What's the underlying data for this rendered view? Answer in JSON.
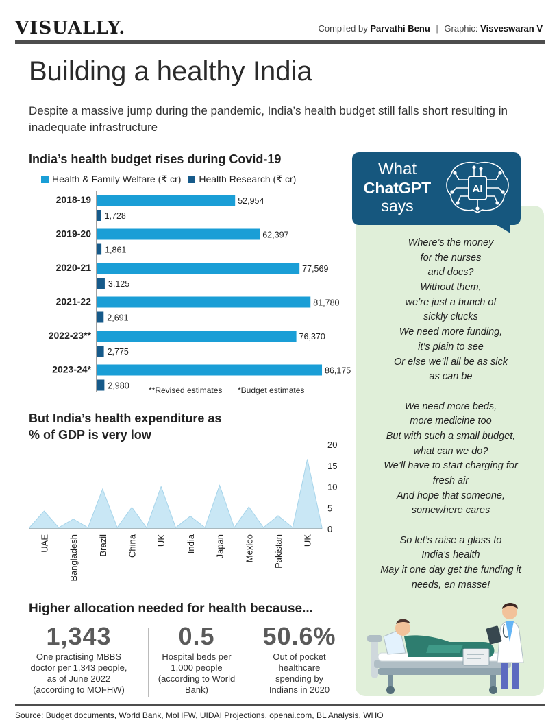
{
  "header": {
    "masthead": "VISUALLY.",
    "compiled_prefix": "Compiled by",
    "compiled_name": "Parvathi Benu",
    "separator": "|",
    "graphic_prefix": "Graphic:",
    "graphic_name": "Visveswaran V"
  },
  "title": "Building a healthy India",
  "subtitle": "Despite a massive jump during the pandemic, India’s health budget still falls short resulting in inadequate infrastructure",
  "colors": {
    "welfare": "#1a9ed6",
    "research": "#165a8a",
    "area": "#c9e7f5",
    "panel": "#e0efd9",
    "gpt_box": "#16577e"
  },
  "budget_section": {
    "heading": "India’s health budget rises during Covid-19"
  },
  "gdp_section": {
    "heading_line1": "But India’s health expenditure as",
    "heading_line2": "% of GDP is very low"
  },
  "chart_data": [
    {
      "type": "bar",
      "orientation": "horizontal",
      "title": "India’s health budget rises during Covid-19",
      "categories": [
        "2018-19",
        "2019-20",
        "2020-21",
        "2021-22",
        "2022-23**",
        "2023-24*"
      ],
      "series": [
        {
          "name": "Health & Family Welfare (₹ cr)",
          "values": [
            52954,
            62397,
            77569,
            81780,
            76370,
            86175
          ],
          "labels": [
            "52,954",
            "62,397",
            "77,569",
            "81,780",
            "76,370",
            "86,175"
          ]
        },
        {
          "name": "Health Research (₹ cr)",
          "values": [
            1728,
            1861,
            3125,
            2691,
            2775,
            2980
          ],
          "labels": [
            "1,728",
            "1,861",
            "3,125",
            "2,691",
            "2,775",
            "2,980"
          ]
        }
      ],
      "xlim": [
        0,
        110000
      ],
      "grid": false,
      "legend": "top",
      "notes": [
        "**Revised estimates",
        "*Budget estimates"
      ]
    },
    {
      "type": "area",
      "title": "But India’s health expenditure as % of GDP is very low",
      "categories": [
        "UAE",
        "Bangladesh",
        "Brazil",
        "China",
        "UK",
        "India",
        "Japan",
        "Mexico",
        "Pakistan",
        "UK"
      ],
      "x": [
        1,
        3,
        5,
        7,
        9,
        11,
        13,
        15,
        17,
        19
      ],
      "y": [
        4.2,
        2.3,
        9.4,
        5.1,
        10,
        3,
        10.3,
        5.2,
        3.1,
        16.5
      ],
      "baseline_between_peaks": 0.3,
      "ylim": [
        0,
        20
      ],
      "yticks": [
        "20",
        "15",
        "10",
        "5",
        "0"
      ],
      "grid": false
    }
  ],
  "reasons": {
    "heading": "Higher allocation needed for health because...",
    "stats": [
      {
        "value": "1,343",
        "lines": [
          "One practising MBBS",
          "doctor per 1,343 people,",
          "as of June 2022",
          "(according to MOFHW)"
        ]
      },
      {
        "value": "0.5",
        "lines": [
          "Hospital beds per",
          "1,000 people",
          "(according to World",
          "Bank)"
        ]
      },
      {
        "value": "50.6%",
        "lines": [
          "Out of pocket",
          "healthcare",
          "spending by",
          "Indians in 2020"
        ]
      }
    ]
  },
  "chatgpt": {
    "what": "What",
    "chatgpt": "ChatGPT",
    "says": "says",
    "icon_label": "AI",
    "poem": [
      "Where’s the money",
      "for the nurses",
      "and docs?",
      "Without them,",
      "we’re just a bunch of",
      "sickly clucks",
      "We need more funding,",
      "it’s plain to see",
      "Or else we’ll all be as sick",
      "as can be",
      "",
      "We need more beds,",
      "more medicine too",
      "But with such a small budget,",
      "what can we do?",
      "We’ll have to start charging for",
      "fresh air",
      "And hope that someone,",
      "somewhere cares",
      "",
      "So let’s raise a glass to",
      "India’s health",
      "May it one day get the funding it",
      "needs, en masse!"
    ]
  },
  "source": "Source: Budget documents, World Bank, MoHFW, UIDAI Projections, openai.com, BL Analysis, WHO"
}
